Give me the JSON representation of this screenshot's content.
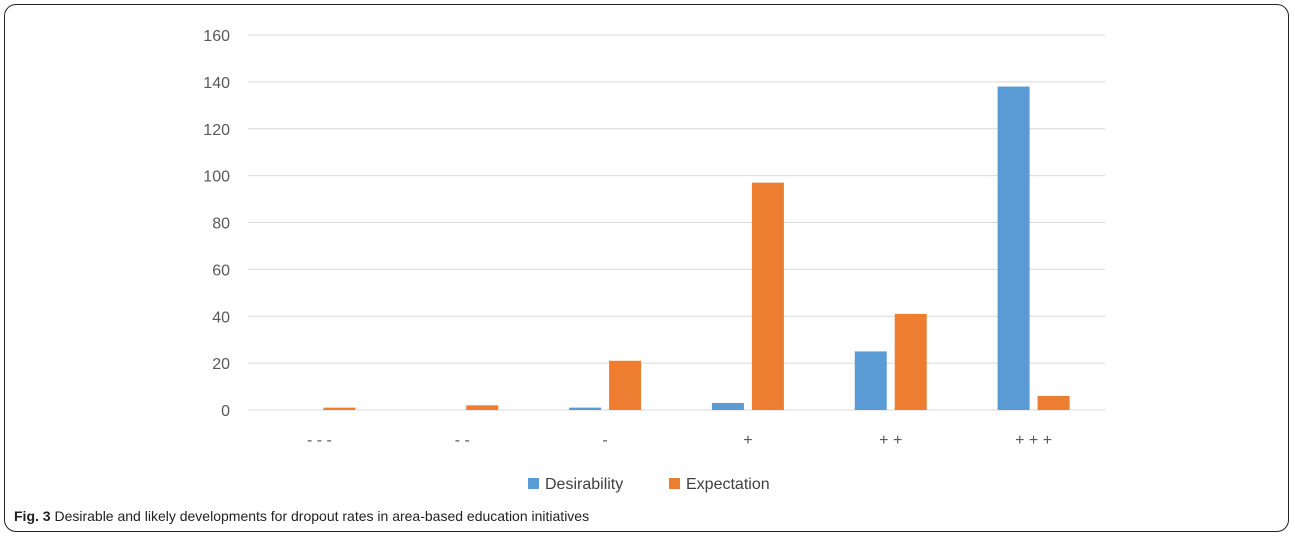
{
  "caption": {
    "label": "Fig. 3",
    "text": "Desirable and likely developments for dropout rates in area-based education initiatives"
  },
  "chart_data": {
    "type": "bar",
    "title": "",
    "xlabel": "",
    "ylabel": "",
    "categories": [
      "- - -",
      "- -",
      "-",
      "+",
      "+ +",
      "+ + +"
    ],
    "series": [
      {
        "name": "Desirability",
        "color": "#5B9BD5",
        "values": [
          0,
          0,
          1,
          3,
          25,
          138
        ]
      },
      {
        "name": "Expectation",
        "color": "#ED7D31",
        "values": [
          1,
          2,
          21,
          97,
          41,
          6
        ]
      }
    ],
    "ylim": [
      0,
      160
    ],
    "yticks": [
      0,
      20,
      40,
      60,
      80,
      100,
      120,
      140,
      160
    ],
    "grid": true,
    "legend_position": "bottom"
  }
}
